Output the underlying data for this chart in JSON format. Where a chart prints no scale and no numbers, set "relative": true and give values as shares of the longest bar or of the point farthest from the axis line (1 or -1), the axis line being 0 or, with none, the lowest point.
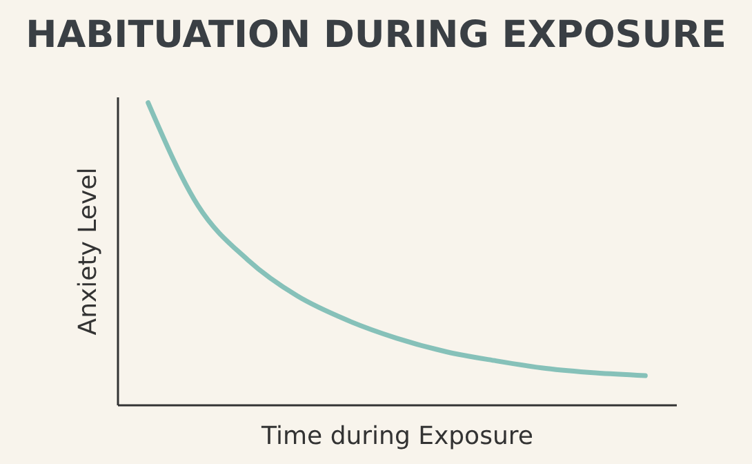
{
  "chart_data": {
    "type": "line",
    "title": "HABITUATION DURING EXPOSURE",
    "xlabel": "Time during Exposure",
    "ylabel": "Anxiety Level",
    "relative": true,
    "categories": [
      null,
      null,
      null,
      null,
      null,
      null,
      null,
      null,
      null,
      null,
      null
    ],
    "series": [
      {
        "color": "#86c1b9",
        "values": [
          1,
          0.66,
          0.48,
          0.36,
          0.28,
          0.22,
          0.175,
          0.145,
          0.12,
          0.105,
          0.096
        ]
      }
    ]
  }
}
